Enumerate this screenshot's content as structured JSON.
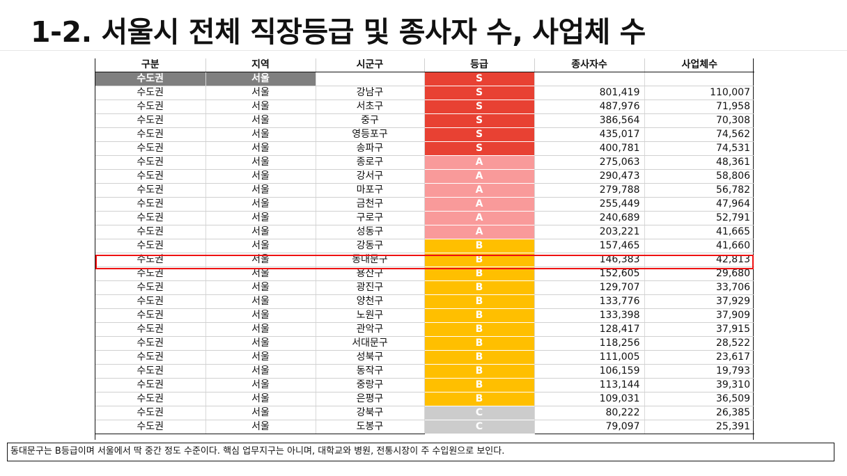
{
  "title": "1-2. 서울시 전체 직장등급 및 종사자 수, 사업체 수",
  "table": {
    "headers": [
      "구분",
      "지역",
      "시군구",
      "등급",
      "종사자수",
      "사업체수"
    ],
    "summary": {
      "group": "수도권",
      "region": "서울",
      "district": "",
      "grade": "S",
      "workers": "",
      "businesses": ""
    },
    "rows": [
      {
        "group": "수도권",
        "region": "서울",
        "district": "강남구",
        "grade": "S",
        "workers": "801,419",
        "businesses": "110,007"
      },
      {
        "group": "수도권",
        "region": "서울",
        "district": "서초구",
        "grade": "S",
        "workers": "487,976",
        "businesses": "71,958"
      },
      {
        "group": "수도권",
        "region": "서울",
        "district": "중구",
        "grade": "S",
        "workers": "386,564",
        "businesses": "70,308"
      },
      {
        "group": "수도권",
        "region": "서울",
        "district": "영등포구",
        "grade": "S",
        "workers": "435,017",
        "businesses": "74,562"
      },
      {
        "group": "수도권",
        "region": "서울",
        "district": "송파구",
        "grade": "S",
        "workers": "400,781",
        "businesses": "74,531"
      },
      {
        "group": "수도권",
        "region": "서울",
        "district": "종로구",
        "grade": "A",
        "workers": "275,063",
        "businesses": "48,361"
      },
      {
        "group": "수도권",
        "region": "서울",
        "district": "강서구",
        "grade": "A",
        "workers": "290,473",
        "businesses": "58,806"
      },
      {
        "group": "수도권",
        "region": "서울",
        "district": "마포구",
        "grade": "A",
        "workers": "279,788",
        "businesses": "56,782"
      },
      {
        "group": "수도권",
        "region": "서울",
        "district": "금천구",
        "grade": "A",
        "workers": "255,449",
        "businesses": "47,964"
      },
      {
        "group": "수도권",
        "region": "서울",
        "district": "구로구",
        "grade": "A",
        "workers": "240,689",
        "businesses": "52,791"
      },
      {
        "group": "수도권",
        "region": "서울",
        "district": "성동구",
        "grade": "A",
        "workers": "203,221",
        "businesses": "41,665"
      },
      {
        "group": "수도권",
        "region": "서울",
        "district": "강동구",
        "grade": "B",
        "workers": "157,465",
        "businesses": "41,660"
      },
      {
        "group": "수도권",
        "region": "서울",
        "district": "동대문구",
        "grade": "B",
        "workers": "146,383",
        "businesses": "42,813"
      },
      {
        "group": "수도권",
        "region": "서울",
        "district": "용산구",
        "grade": "B",
        "workers": "152,605",
        "businesses": "29,680"
      },
      {
        "group": "수도권",
        "region": "서울",
        "district": "광진구",
        "grade": "B",
        "workers": "129,707",
        "businesses": "33,706"
      },
      {
        "group": "수도권",
        "region": "서울",
        "district": "양천구",
        "grade": "B",
        "workers": "133,776",
        "businesses": "37,929"
      },
      {
        "group": "수도권",
        "region": "서울",
        "district": "노원구",
        "grade": "B",
        "workers": "133,398",
        "businesses": "37,909"
      },
      {
        "group": "수도권",
        "region": "서울",
        "district": "관악구",
        "grade": "B",
        "workers": "128,417",
        "businesses": "37,915"
      },
      {
        "group": "수도권",
        "region": "서울",
        "district": "서대문구",
        "grade": "B",
        "workers": "118,256",
        "businesses": "28,522"
      },
      {
        "group": "수도권",
        "region": "서울",
        "district": "성북구",
        "grade": "B",
        "workers": "111,005",
        "businesses": "23,617"
      },
      {
        "group": "수도권",
        "region": "서울",
        "district": "동작구",
        "grade": "B",
        "workers": "106,159",
        "businesses": "19,793"
      },
      {
        "group": "수도권",
        "region": "서울",
        "district": "중랑구",
        "grade": "B",
        "workers": "113,144",
        "businesses": "39,310"
      },
      {
        "group": "수도권",
        "region": "서울",
        "district": "은평구",
        "grade": "B",
        "workers": "109,031",
        "businesses": "36,509"
      },
      {
        "group": "수도권",
        "region": "서울",
        "district": "강북구",
        "grade": "C",
        "workers": "80,222",
        "businesses": "26,385"
      },
      {
        "group": "수도권",
        "region": "서울",
        "district": "도봉구",
        "grade": "C",
        "workers": "79,097",
        "businesses": "25,391"
      }
    ],
    "highlighted_district": "동대문구",
    "grade_colors": {
      "S": "#e84133",
      "A": "#f99a9a",
      "B": "#ffbf00",
      "C": "#cccccc"
    },
    "highlight_color": "#ee1111",
    "summary_color": "#7f7f7f"
  },
  "note": "동대문구는 B등급이며 서울에서 딱 중간 정도 수준이다. 핵심 업무지구는 아니며, 대학교와 병원, 전통시장이 주 수입원으로 보인다."
}
